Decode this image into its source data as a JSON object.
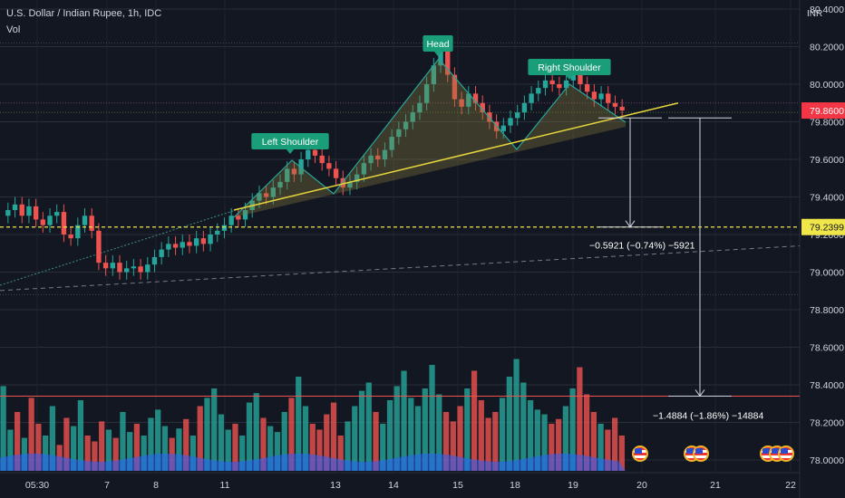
{
  "header": {
    "symbol_line": "U.S. Dollar / Indian Rupee, 1h, IDC",
    "indicator": "Vol"
  },
  "currency_label": "INR",
  "colors": {
    "background": "#131722",
    "up_candle": "#26a69a",
    "down_candle": "#ef5350",
    "pattern_fill": "#8a7a3a",
    "neckline": "#e6d63c",
    "target_line": "#f0e64a",
    "stop_line": "#ef5350",
    "label_bg": "#1a9e7a",
    "last_price_bg": "#f23645",
    "volume_ma": "#2962ff"
  },
  "chart_data": {
    "type": "candlestick",
    "yaxis": {
      "ticks": [
        "80.4000",
        "80.2000",
        "80.0000",
        "79.8000",
        "79.6000",
        "79.4000",
        "79.2000",
        "79.0000",
        "78.8000",
        "78.6000",
        "78.4000",
        "78.2000",
        "78.0000"
      ],
      "ylim": [
        77.98,
        80.42
      ]
    },
    "xaxis": {
      "ticks": [
        "05:30",
        "7",
        "8",
        "11",
        "13",
        "14",
        "15",
        "18",
        "19",
        "20",
        "21",
        "22"
      ]
    },
    "last_price": "79.8600",
    "target_price": "79.2399",
    "pattern": {
      "name": "Head and Shoulders",
      "labels": [
        {
          "text": "Left Shoulder",
          "price": 79.66
        },
        {
          "text": "Head",
          "price": 80.2
        },
        {
          "text": "Right Shoulder",
          "price": 80.08
        }
      ]
    },
    "measurements": [
      {
        "text": "−0.5921 (−0.74%) −5921",
        "from": 79.83,
        "to": 79.2399
      },
      {
        "text": "−1.4884 (−1.86%) −14884",
        "from": 79.83,
        "to": 78.34
      }
    ],
    "levels": {
      "neckline_left": 79.33,
      "neckline_right": 79.9,
      "support_line": 78.34,
      "trend_dash_left": 78.95,
      "trend_dash_right": 79.12
    },
    "close_prices": [
      79.33,
      79.36,
      79.3,
      79.35,
      79.28,
      79.25,
      79.3,
      79.32,
      79.2,
      79.18,
      79.25,
      79.3,
      79.22,
      79.05,
      79.02,
      79.05,
      79.0,
      79.02,
      79.03,
      79.0,
      79.04,
      79.08,
      79.12,
      79.15,
      79.13,
      79.16,
      79.14,
      79.18,
      79.15,
      79.2,
      79.22,
      79.25,
      79.3,
      79.28,
      79.33,
      79.38,
      79.42,
      79.4,
      79.45,
      79.48,
      79.55,
      79.52,
      79.6,
      79.65,
      79.62,
      79.58,
      79.55,
      79.5,
      79.45,
      79.48,
      79.52,
      79.58,
      79.62,
      79.6,
      79.65,
      79.72,
      79.76,
      79.8,
      79.85,
      79.9,
      80.0,
      80.1,
      80.18,
      80.05,
      79.92,
      79.88,
      79.95,
      79.9,
      79.85,
      79.8,
      79.75,
      79.78,
      79.82,
      79.85,
      79.9,
      79.95,
      79.98,
      80.02,
      80.0,
      79.98,
      80.02,
      80.05,
      80.0,
      79.96,
      79.92,
      79.95,
      79.9,
      79.88,
      79.86
    ],
    "volumes": [
      0.72,
      0.35,
      0.5,
      0.28,
      0.62,
      0.4,
      0.3,
      0.55,
      0.22,
      0.45,
      0.38,
      0.6,
      0.3,
      0.25,
      0.42,
      0.35,
      0.28,
      0.5,
      0.33,
      0.4,
      0.3,
      0.45,
      0.52,
      0.38,
      0.28,
      0.36,
      0.44,
      0.3,
      0.55,
      0.62,
      0.7,
      0.48,
      0.35,
      0.4,
      0.3,
      0.58,
      0.66,
      0.45,
      0.38,
      0.33,
      0.5,
      0.62,
      0.8,
      0.55,
      0.4,
      0.35,
      0.48,
      0.58,
      0.3,
      0.42,
      0.55,
      0.68,
      0.75,
      0.5,
      0.4,
      0.6,
      0.72,
      0.85,
      0.62,
      0.55,
      0.7,
      0.9,
      0.65,
      0.5,
      0.42,
      0.55,
      0.7,
      0.85,
      0.6,
      0.45,
      0.5,
      0.62,
      0.8,
      0.95,
      0.75,
      0.6,
      0.52,
      0.48,
      0.4,
      0.44,
      0.55,
      0.7,
      0.88,
      0.65,
      0.5,
      0.4,
      0.35,
      0.45,
      0.3
    ]
  }
}
